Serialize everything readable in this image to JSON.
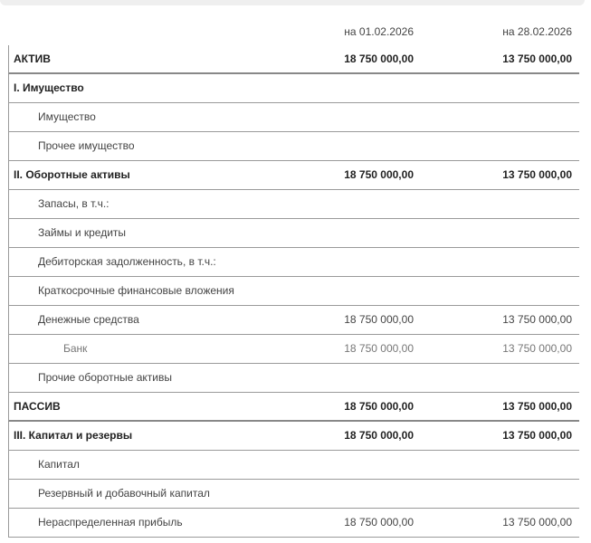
{
  "columns": {
    "date1": "на 01.02.2026",
    "date2": "на 28.02.2026"
  },
  "rows": [
    {
      "label": "АКТИВ",
      "v1": "18 750 000,00",
      "v2": "13 750 000,00",
      "level": 0,
      "bold": true,
      "thick": true
    },
    {
      "label": "I. Имущество",
      "v1": "",
      "v2": "",
      "level": 0,
      "bold": true
    },
    {
      "label": "Имущество",
      "v1": "",
      "v2": "",
      "level": 1
    },
    {
      "label": "Прочее имущество",
      "v1": "",
      "v2": "",
      "level": 1
    },
    {
      "label": "II. Оборотные активы",
      "v1": "18 750 000,00",
      "v2": "13 750 000,00",
      "level": 0,
      "bold": true
    },
    {
      "label": "Запасы, в т.ч.:",
      "v1": "",
      "v2": "",
      "level": 1
    },
    {
      "label": "Займы и кредиты",
      "v1": "",
      "v2": "",
      "level": 1
    },
    {
      "label": "Дебиторская задолженность, в т.ч.:",
      "v1": "",
      "v2": "",
      "level": 1
    },
    {
      "label": "Краткосрочные финансовые вложения",
      "v1": "",
      "v2": "",
      "level": 1
    },
    {
      "label": "Денежные средства",
      "v1": "18 750 000,00",
      "v2": "13 750 000,00",
      "level": 1
    },
    {
      "label": "Банк",
      "v1": "18 750 000,00",
      "v2": "13 750 000,00",
      "level": 2
    },
    {
      "label": "Прочие оборотные активы",
      "v1": "",
      "v2": "",
      "level": 1
    },
    {
      "label": "ПАССИВ",
      "v1": "18 750 000,00",
      "v2": "13 750 000,00",
      "level": 0,
      "bold": true,
      "thick": true
    },
    {
      "label": "III. Капитал и резервы",
      "v1": "18 750 000,00",
      "v2": "13 750 000,00",
      "level": 0,
      "bold": true
    },
    {
      "label": "Капитал",
      "v1": "",
      "v2": "",
      "level": 1
    },
    {
      "label": "Резервный и добавочный капитал",
      "v1": "",
      "v2": "",
      "level": 1
    },
    {
      "label": "Нераспределенная прибыль",
      "v1": "18 750 000,00",
      "v2": "13 750 000,00",
      "level": 1
    }
  ]
}
